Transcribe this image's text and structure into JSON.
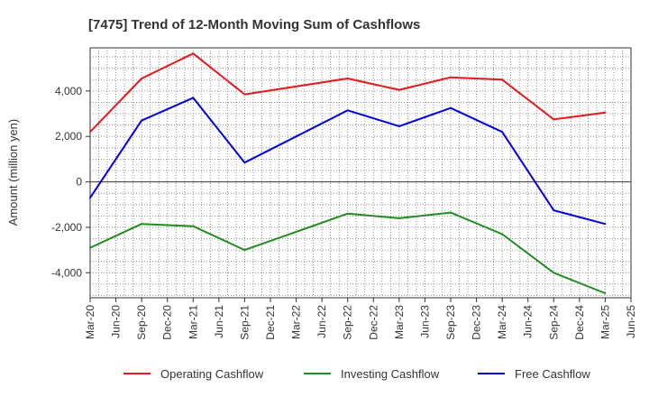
{
  "chart_data": {
    "type": "line",
    "title": "[7475]  Trend of 12-Month Moving Sum of Cashflows",
    "ylabel": "Amount (million yen)",
    "xlabel": "",
    "ylim": [
      -5100,
      5900
    ],
    "y_ticks": [
      -4000,
      -2000,
      0,
      2000,
      4000
    ],
    "y_tick_labels": [
      "-4,000",
      "-2,000",
      "0",
      "2,000",
      "4,000"
    ],
    "x_tick_labels": [
      "Mar-20",
      "Jun-20",
      "Sep-20",
      "Dec-20",
      "Mar-21",
      "Jun-21",
      "Sep-21",
      "Dec-21",
      "Mar-22",
      "Jun-22",
      "Sep-22",
      "Dec-22",
      "Mar-23",
      "Jun-23",
      "Sep-23",
      "Dec-23",
      "Mar-24",
      "Jun-24",
      "Sep-24",
      "Dec-24",
      "Mar-25",
      "Jun-25"
    ],
    "grid": true,
    "legend_position": "bottom",
    "series": [
      {
        "name": "Operating Cashflow",
        "color": "#e31a1c",
        "x": [
          "Mar-20",
          "Sep-20",
          "Mar-21",
          "Sep-21",
          "Sep-22",
          "Mar-23",
          "Sep-23",
          "Mar-24",
          "Sep-24",
          "Mar-25"
        ],
        "values": [
          2200,
          4550,
          5650,
          3850,
          4550,
          4050,
          4600,
          4500,
          2750,
          3050
        ]
      },
      {
        "name": "Investing Cashflow",
        "color": "#228b22",
        "x": [
          "Mar-20",
          "Sep-20",
          "Mar-21",
          "Sep-21",
          "Sep-22",
          "Mar-23",
          "Sep-23",
          "Mar-24",
          "Sep-24",
          "Mar-25"
        ],
        "values": [
          -2900,
          -1850,
          -1950,
          -3000,
          -1400,
          -1600,
          -1350,
          -2300,
          -4000,
          -4900
        ]
      },
      {
        "name": "Free Cashflow",
        "color": "#0000dd",
        "x": [
          "Mar-20",
          "Sep-20",
          "Mar-21",
          "Sep-21",
          "Sep-22",
          "Mar-23",
          "Sep-23",
          "Mar-24",
          "Sep-24",
          "Mar-25"
        ],
        "values": [
          -700,
          2700,
          3700,
          850,
          3150,
          2450,
          3250,
          2200,
          -1250,
          -1850
        ]
      }
    ]
  }
}
